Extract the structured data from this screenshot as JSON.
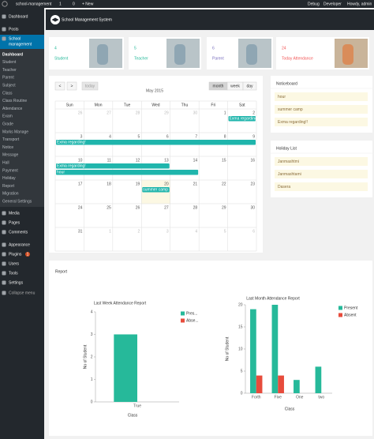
{
  "admin_bar": {
    "site": "school-management",
    "updates": "1",
    "comments": "0",
    "new": "+ New",
    "right": [
      "Debug",
      "Developer",
      "Howdy, admin"
    ]
  },
  "sidebar": {
    "top": [
      "Dashboard",
      "Posts"
    ],
    "active": [
      "School",
      "management"
    ],
    "submenu": [
      "Dashboard",
      "Student",
      "Teacher",
      "Parent",
      "Subject",
      "Class",
      "Class Routine",
      "Attendance",
      "Exam",
      "Grade",
      "Marks Manage",
      "Transport",
      "Notice",
      "Message",
      "Hall",
      "Payment",
      "Holiday",
      "Report",
      "Migration",
      "General Settings"
    ],
    "bottom": [
      "Media",
      "Pages",
      "Comments",
      "Appearance",
      "Plugins",
      "Users",
      "Tools",
      "Settings",
      "Collapse menu"
    ],
    "plugins_badge": "1"
  },
  "header": {
    "title": "School Management System"
  },
  "stats": [
    {
      "value": 4,
      "label": "Student",
      "color": "#26b99a"
    },
    {
      "value": 5,
      "label": "Teacher",
      "color": "#26b99a"
    },
    {
      "value": 6,
      "label": "Parent",
      "color": "#7a6fbe"
    },
    {
      "value": 24,
      "label": "Today Attendance",
      "color": "#f25656"
    }
  ],
  "calendar": {
    "title": "May 2015",
    "nav": [
      "<",
      ">",
      "today"
    ],
    "views": [
      "month",
      "week",
      "day"
    ],
    "weekdays": [
      "Sun",
      "Mon",
      "Tue",
      "Wed",
      "Thu",
      "Fri",
      "Sat"
    ],
    "weeks": [
      {
        "days": [
          26,
          27,
          28,
          29,
          30,
          1,
          2
        ],
        "events": [
          "Exma regarding!"
        ]
      },
      {
        "days": [
          3,
          4,
          5,
          6,
          7,
          8,
          9
        ],
        "events": [
          "Exma regarding!"
        ]
      },
      {
        "days": [
          10,
          11,
          12,
          13,
          14,
          15,
          16
        ],
        "events": [
          "Exma regarding!",
          "hour"
        ]
      },
      {
        "days": [
          17,
          18,
          19,
          20,
          21,
          22,
          23
        ],
        "events": [
          "summer camp"
        ]
      },
      {
        "days": [
          24,
          25,
          26,
          27,
          28,
          29,
          30
        ],
        "events": []
      },
      {
        "days": [
          31,
          1,
          2,
          3,
          4,
          5,
          6
        ],
        "events": []
      }
    ]
  },
  "noticeboard": {
    "title": "Noticeboard",
    "items": [
      "hour",
      "summer camp",
      "Exma regarding!!"
    ]
  },
  "holidays": {
    "title": "Holiday List",
    "items": [
      "Janmashtmi",
      "Janmashtami",
      "Dasera"
    ]
  },
  "report": {
    "title": "Report"
  },
  "chart_data": [
    {
      "type": "bar",
      "title": "Last Week Attendance Report",
      "categories": [
        "True"
      ],
      "series": [
        {
          "name": "Pres...",
          "color": "#26b99a",
          "values": [
            3
          ]
        },
        {
          "name": "Abse...",
          "color": "#e74c3c",
          "values": [
            0
          ]
        }
      ],
      "ylim": [
        0,
        4
      ],
      "yticks": [
        0,
        1,
        2,
        3,
        4
      ],
      "y_label": "No of Student",
      "x_label": "Class"
    },
    {
      "type": "bar",
      "title": "Last Month Attendance Report",
      "categories": [
        "Forth",
        "Five",
        "One",
        "two"
      ],
      "series": [
        {
          "name": "Present",
          "color": "#26b99a",
          "values": [
            19,
            20,
            3,
            6
          ]
        },
        {
          "name": "Absent",
          "color": "#e74c3c",
          "values": [
            4,
            4,
            0,
            0
          ]
        }
      ],
      "ylim": [
        0,
        20
      ],
      "yticks": [
        0,
        5,
        10,
        15,
        20
      ],
      "y_label": "No of Student",
      "x_label": "Class"
    }
  ]
}
